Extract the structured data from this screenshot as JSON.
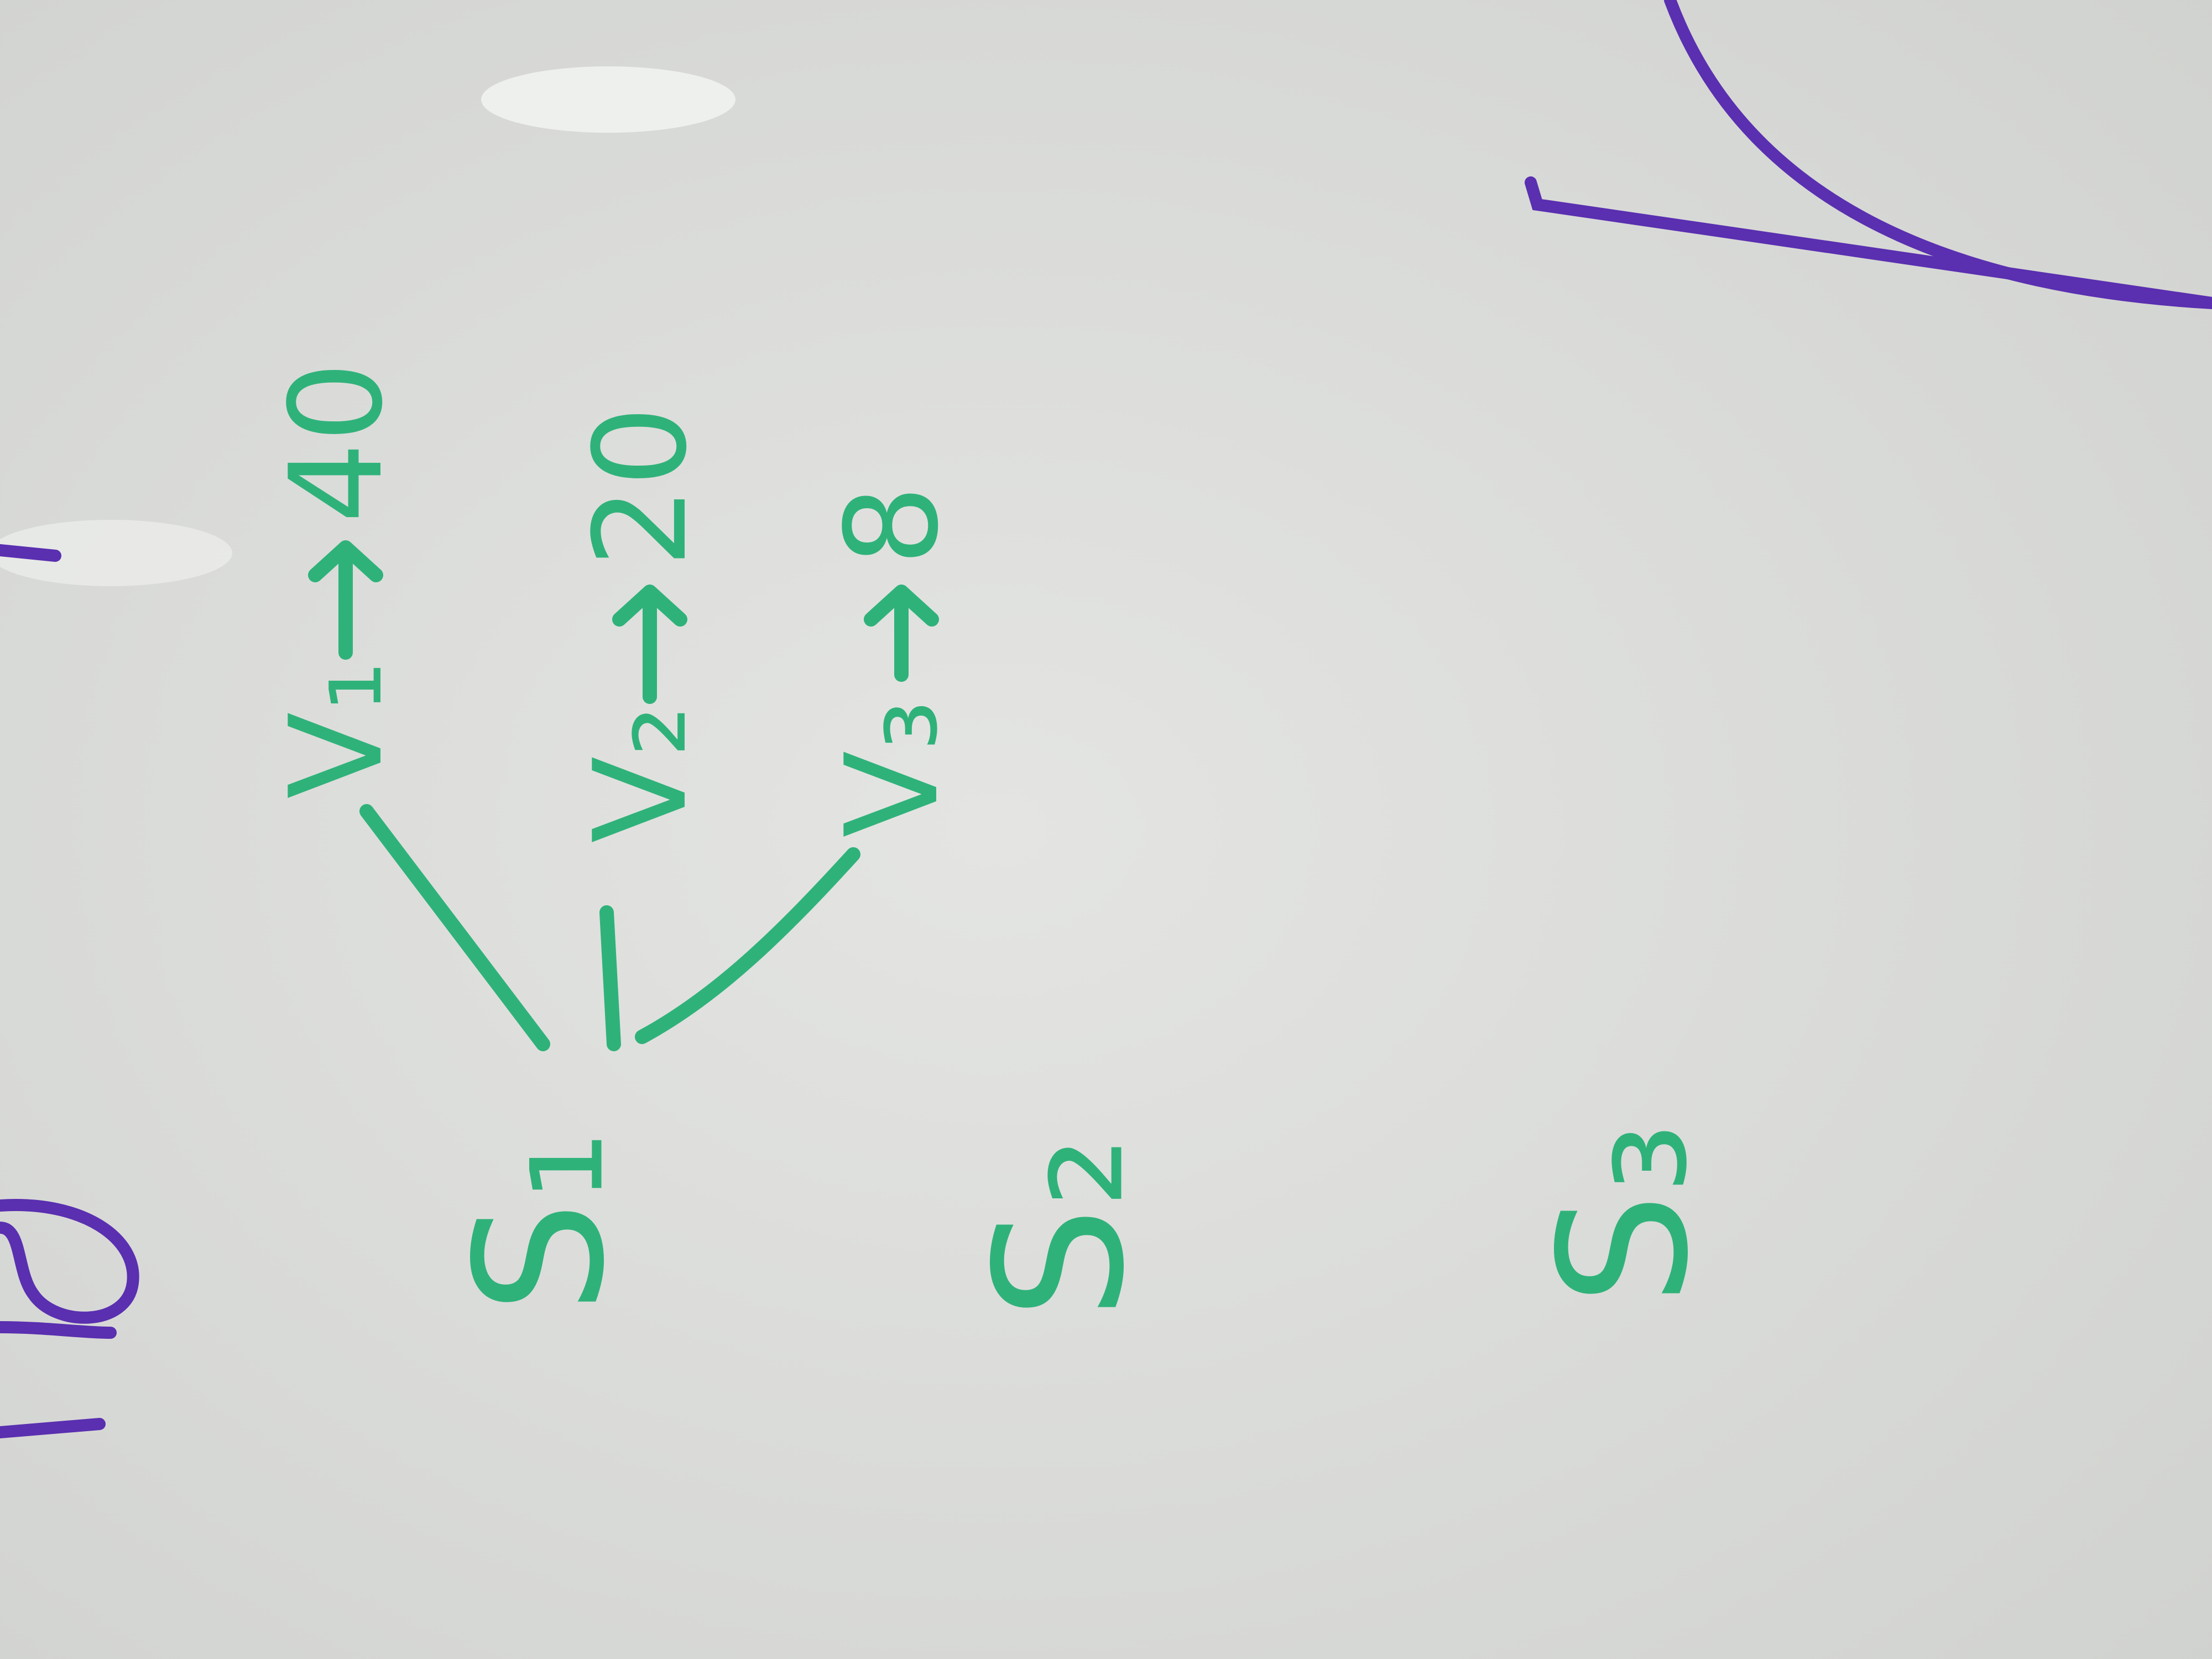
{
  "nodes": [
    {
      "label": "S₁"
    },
    {
      "label": "S₂"
    },
    {
      "label": "S₃"
    }
  ],
  "branches": [
    {
      "label": "V₁",
      "value": 40
    },
    {
      "label": "V₂",
      "value": 20
    },
    {
      "label": "V₃",
      "value": 8
    }
  ]
}
